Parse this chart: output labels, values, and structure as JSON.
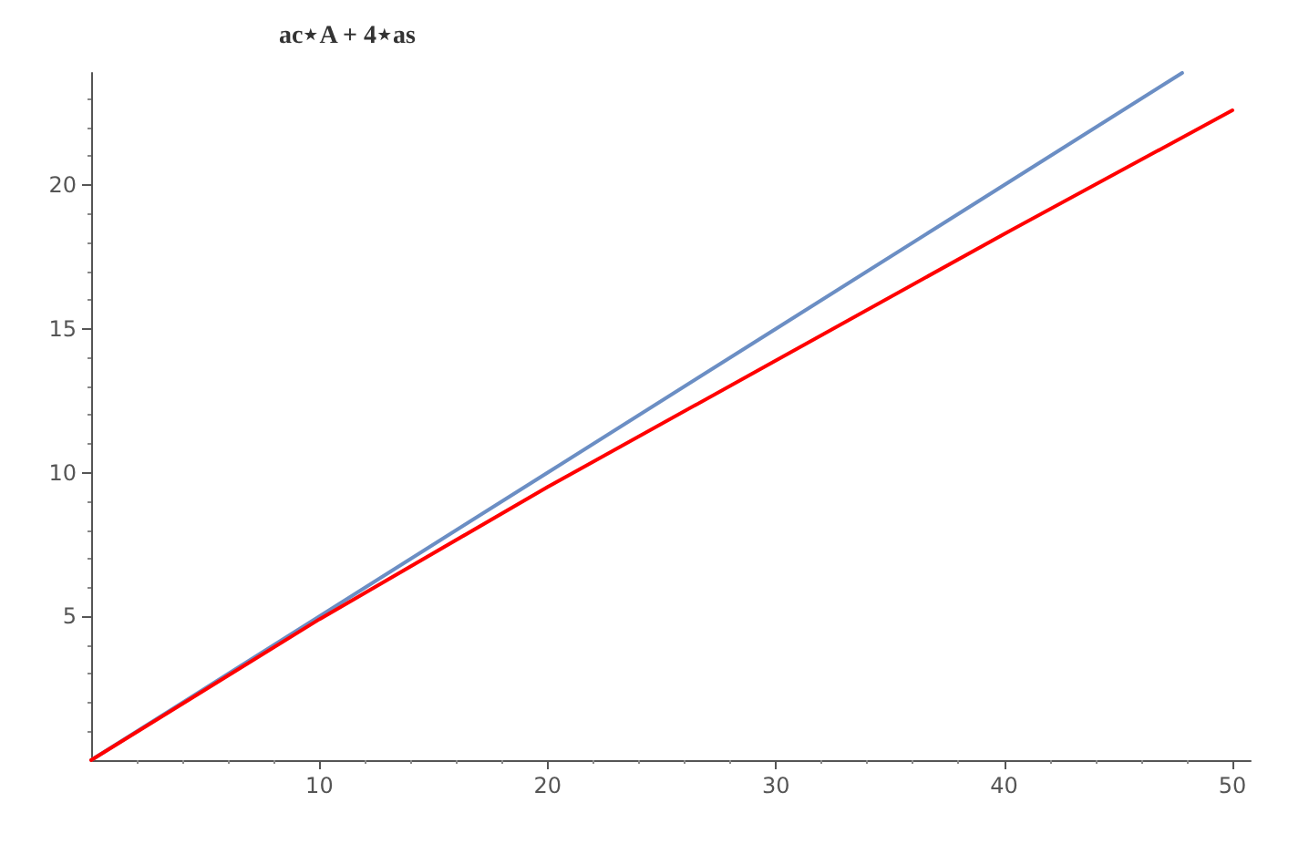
{
  "chart_data": {
    "type": "line",
    "title": "ac⋆A + 4⋆as",
    "x": [
      0,
      10,
      20,
      30,
      40,
      50
    ],
    "xlim": [
      0,
      50.8
    ],
    "ylim": [
      0,
      23.9
    ],
    "xticks": [
      10,
      20,
      30,
      40,
      50
    ],
    "yticks": [
      5,
      10,
      15,
      20
    ],
    "grid": false,
    "marker": "none",
    "line_style": "solid",
    "series": [
      {
        "color": "#6b8ec4",
        "x": [
          0,
          10,
          20,
          30,
          40,
          47.8
        ],
        "values": [
          0,
          5,
          10,
          15,
          20,
          23.9
        ]
      },
      {
        "color": "#ff0000",
        "values": [
          0,
          4.9,
          9.5,
          13.9,
          18.3,
          22.6
        ]
      }
    ]
  }
}
